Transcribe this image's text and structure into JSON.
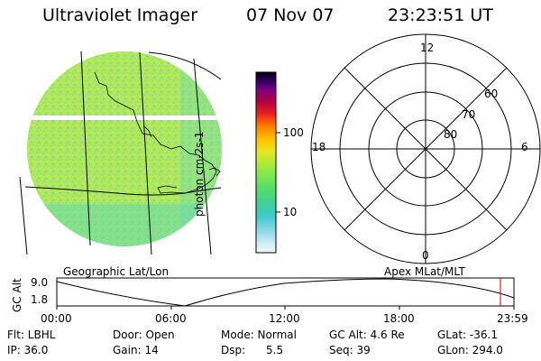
{
  "header": {
    "title": "Ultraviolet Imager",
    "date": "07 Nov 07",
    "time": "23:23:51 UT"
  },
  "colorbar": {
    "unit_label": "photon cm-2s-1",
    "ticks": [
      "100",
      "10"
    ]
  },
  "polar_plot": {
    "mlt_labels": [
      "12",
      "18",
      "6",
      "0"
    ],
    "lat_labels": [
      "60",
      "70",
      "80"
    ]
  },
  "map_captions": {
    "geographic": "Geographic Lat/Lon",
    "apex": "Apex MLat/MLT"
  },
  "altitude_panel": {
    "ylabel": "GC Alt",
    "ymax": "9.0",
    "ymin": "1.8",
    "time_ticks": [
      "00:00",
      "06:00",
      "12:00",
      "18:00",
      "23:59"
    ],
    "marker_color": "#cc0000"
  },
  "footer": {
    "row1": {
      "flt": "Flt: LBHL",
      "door": "Door: Open",
      "mode": "Mode: Normal",
      "gcalt": "GC Alt: 4.6 Re",
      "glat": "GLat: -36.1"
    },
    "row2": {
      "ip": "IP: 36.0",
      "gain": "Gain: 14",
      "dsp": "Dsp:      5.5",
      "seq": "Seq: 39",
      "glon": "GLon: 294.0"
    }
  }
}
